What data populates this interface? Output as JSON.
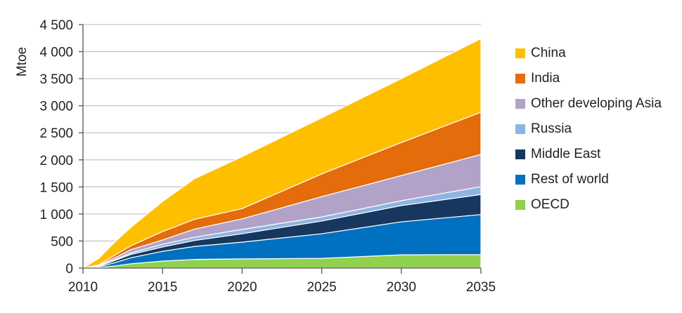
{
  "chart_data": {
    "type": "area",
    "stacked": true,
    "title": "",
    "xlabel": "",
    "ylabel": "Mtoe",
    "xlim": [
      2010,
      2035
    ],
    "ylim": [
      0,
      4500
    ],
    "x_ticks": [
      "2010",
      "2015",
      "2020",
      "2025",
      "2030",
      "2035"
    ],
    "y_ticks": [
      "0",
      "500",
      "1 000",
      "1 500",
      "2 000",
      "2 500",
      "3 000",
      "3 500",
      "4 000",
      "4 500"
    ],
    "grid": "horizontal",
    "legend_position": "right",
    "x": [
      2010,
      2011,
      2012,
      2013,
      2015,
      2017,
      2020,
      2025,
      2030,
      2035
    ],
    "series": [
      {
        "name": "OECD",
        "color": "#92D050",
        "values": [
          0,
          10,
          40,
          80,
          130,
          160,
          170,
          180,
          245,
          250
        ]
      },
      {
        "name": "Rest of world",
        "color": "#0070C0",
        "values": [
          0,
          15,
          60,
          110,
          180,
          240,
          310,
          455,
          610,
          740
        ]
      },
      {
        "name": "Middle East",
        "color": "#17375E",
        "values": [
          0,
          10,
          40,
          60,
          80,
          110,
          155,
          235,
          300,
          370
        ]
      },
      {
        "name": "Russia",
        "color": "#8EB4E3",
        "values": [
          0,
          5,
          15,
          30,
          50,
          60,
          80,
          75,
          90,
          145
        ]
      },
      {
        "name": "Other developing Asia",
        "color": "#B3A2C7",
        "values": [
          0,
          10,
          35,
          60,
          80,
          150,
          195,
          375,
          465,
          595
        ]
      },
      {
        "name": "India",
        "color": "#E46C0A",
        "values": [
          0,
          10,
          50,
          70,
          155,
          180,
          190,
          420,
          610,
          780
        ]
      },
      {
        "name": "China",
        "color": "#FDBF00",
        "values": [
          0,
          120,
          240,
          340,
          555,
          750,
          960,
          1035,
          1180,
          1360
        ]
      }
    ]
  }
}
